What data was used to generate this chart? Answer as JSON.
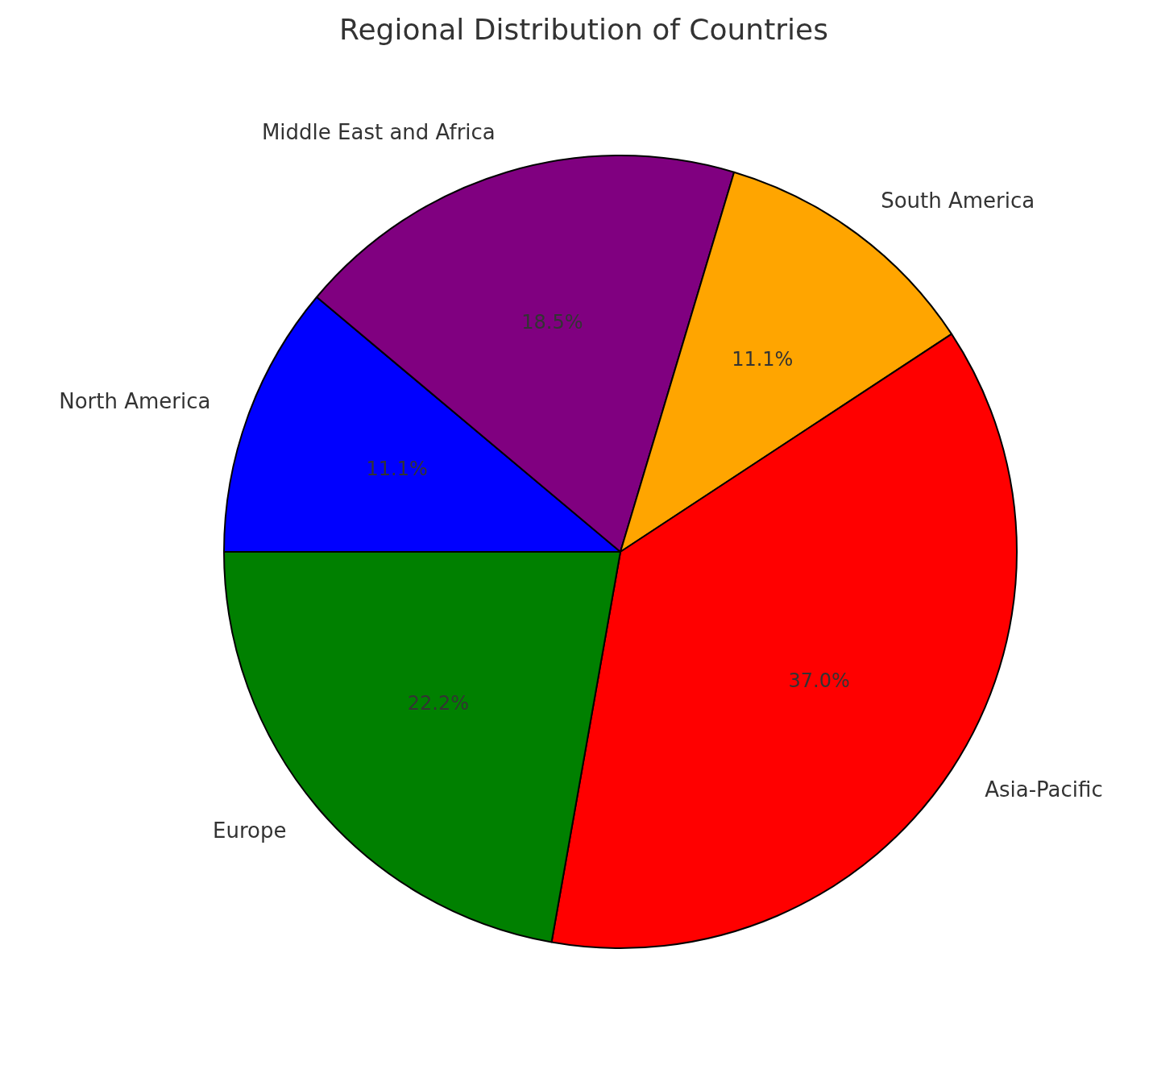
{
  "chart_data": {
    "type": "pie",
    "title": "Regional Distribution of Countries",
    "categories": [
      "North America",
      "Middle East and Africa",
      "South America",
      "Asia-Pacific",
      "Europe"
    ],
    "values": [
      11.1,
      18.5,
      11.1,
      37.0,
      22.2
    ],
    "colors": [
      "#0000ff",
      "#800080",
      "#ffa500",
      "#ff0000",
      "#008000"
    ],
    "value_labels": [
      "11.1%",
      "18.5%",
      "11.1%",
      "37.0%",
      "22.2%"
    ],
    "legend": false
  }
}
